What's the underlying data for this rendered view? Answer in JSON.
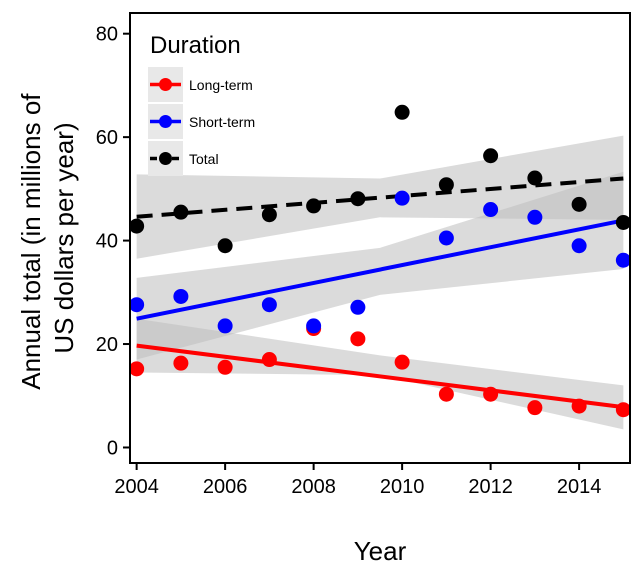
{
  "chart_data": {
    "type": "scatter",
    "xlabel": "Year",
    "ylabel_lines": [
      "Annual total (in millions of",
      "US dollars per year)"
    ],
    "xlim": [
      2003.85,
      2015.15
    ],
    "ylim": [
      -3,
      84
    ],
    "x_ticks": [
      2004,
      2006,
      2008,
      2010,
      2012,
      2014
    ],
    "y_ticks": [
      0,
      20,
      40,
      60,
      80
    ],
    "grid": false,
    "legend": {
      "title": "Duration",
      "placement": "top-left"
    },
    "series": [
      {
        "name": "Long-term",
        "color": "#ff0000",
        "line_style": "solid",
        "x": [
          2004,
          2005,
          2006,
          2007,
          2008,
          2009,
          2010,
          2011,
          2012,
          2013,
          2014,
          2015
        ],
        "y": [
          15.2,
          16.3,
          15.5,
          17.0,
          23.0,
          21.0,
          16.5,
          10.3,
          10.3,
          7.7,
          8.0,
          7.3
        ],
        "fit": {
          "start": [
            2004,
            19.7
          ],
          "end": [
            2015,
            7.8
          ]
        },
        "ci": {
          "x": [
            2004,
            2009.5,
            2015
          ],
          "lower": [
            14.5,
            14.0,
            3.5
          ],
          "upper": [
            24.9,
            17.8,
            12.0
          ]
        }
      },
      {
        "name": "Short-term",
        "color": "#0000ff",
        "line_style": "solid",
        "x": [
          2004,
          2005,
          2006,
          2007,
          2008,
          2009,
          2010,
          2011,
          2012,
          2013,
          2014,
          2015
        ],
        "y": [
          27.6,
          29.2,
          23.5,
          27.6,
          23.5,
          27.1,
          48.2,
          40.5,
          46.0,
          44.5,
          39.0,
          36.2
        ],
        "fit": {
          "start": [
            2004,
            24.9
          ],
          "end": [
            2015,
            43.9
          ]
        },
        "ci": {
          "x": [
            2004,
            2009.5,
            2015
          ],
          "lower": [
            17.0,
            29.5,
            34.5
          ],
          "upper": [
            32.8,
            38.6,
            53.3
          ]
        }
      },
      {
        "name": "Total",
        "color": "#000000",
        "line_style": "dashed",
        "x": [
          2004,
          2005,
          2006,
          2007,
          2008,
          2009,
          2010,
          2011,
          2012,
          2013,
          2014,
          2015
        ],
        "y": [
          42.8,
          45.5,
          39.0,
          45.0,
          46.7,
          48.1,
          64.8,
          50.8,
          56.4,
          52.1,
          47.0,
          43.5
        ],
        "fit": {
          "start": [
            2004,
            44.6
          ],
          "end": [
            2015,
            52.0
          ]
        },
        "ci": {
          "x": [
            2004,
            2009.5,
            2015
          ],
          "lower": [
            36.5,
            44.5,
            44.0
          ],
          "upper": [
            52.8,
            52.0,
            60.3
          ]
        }
      }
    ]
  }
}
